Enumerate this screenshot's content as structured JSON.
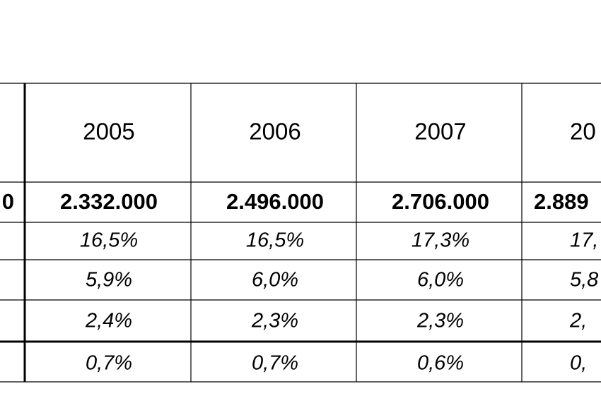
{
  "table": {
    "header": [
      "2005",
      "2006",
      "2007",
      "20"
    ],
    "rows": [
      {
        "lead": "0",
        "cells": [
          "2.332.000",
          "2.496.000",
          "2.706.000",
          "2.889"
        ]
      },
      {
        "cells": [
          "16,5%",
          "16,5%",
          "17,3%",
          "17,"
        ]
      },
      {
        "cells": [
          "5,9%",
          "6,0%",
          "6,0%",
          "5,8"
        ]
      },
      {
        "cells": [
          "2,4%",
          "2,3%",
          "2,3%",
          "2,"
        ]
      },
      {
        "cells": [
          "0,7%",
          "0,7%",
          "0,6%",
          "0,"
        ]
      }
    ]
  }
}
